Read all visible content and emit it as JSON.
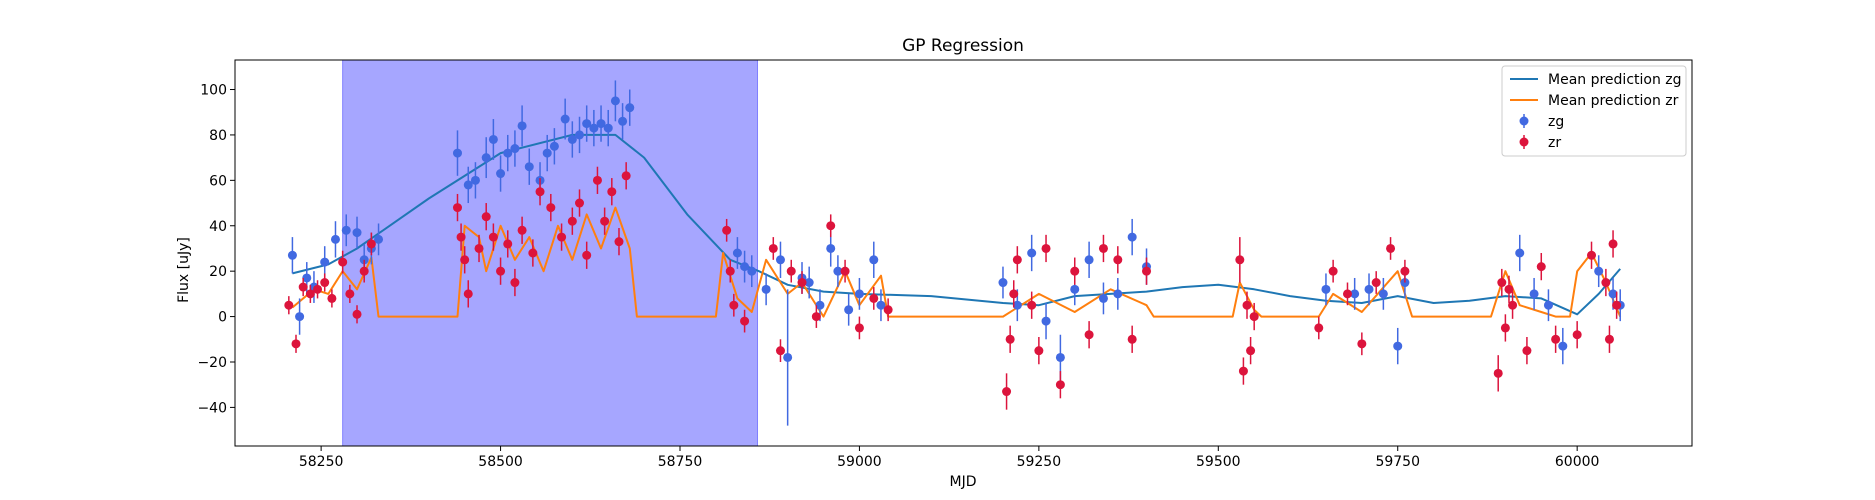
{
  "chart_data": {
    "type": "scatter",
    "title": "GP Regression",
    "xlabel": "MJD",
    "ylabel": "Flux [uJy]",
    "xlim": [
      58130,
      60160
    ],
    "ylim": [
      -57,
      113
    ],
    "xticks": [
      58250,
      58500,
      58750,
      59000,
      59250,
      59500,
      59750,
      60000
    ],
    "yticks": [
      -40,
      -20,
      0,
      20,
      40,
      60,
      80,
      100
    ],
    "grid": false,
    "legend_position": "top-right",
    "highlight_region": {
      "x0": 58280,
      "x1": 58858,
      "color": "#a6a6ff"
    },
    "colors": {
      "zg": "#4169e1",
      "zr": "#dc143c",
      "mean_zg": "#1f77b4",
      "mean_zr": "#ff7f0e"
    },
    "series": [
      {
        "name": "Mean prediction zg",
        "kind": "line",
        "color": "#1f77b4",
        "x": [
          58210,
          58260,
          58300,
          58400,
          58500,
          58600,
          58660,
          58700,
          58760,
          58820,
          58860,
          58900,
          58950,
          59000,
          59100,
          59200,
          59250,
          59300,
          59400,
          59450,
          59500,
          59550,
          59600,
          59650,
          59700,
          59750,
          59800,
          59850,
          59900,
          59950,
          60000,
          60030,
          60060
        ],
        "y": [
          19,
          23,
          30,
          52,
          72,
          80,
          80,
          70,
          45,
          25,
          20,
          14,
          11,
          10,
          9,
          6,
          5,
          9,
          11,
          13,
          14,
          12,
          9,
          7,
          6,
          9,
          6,
          7,
          9,
          8,
          1,
          10,
          21
        ]
      },
      {
        "name": "Mean prediction zr",
        "kind": "line",
        "color": "#ff7f0e",
        "x": [
          58210,
          58240,
          58260,
          58280,
          58300,
          58320,
          58330,
          58440,
          58450,
          58470,
          58480,
          58500,
          58520,
          58540,
          58560,
          58580,
          58600,
          58620,
          58640,
          58660,
          58680,
          58690,
          58800,
          58810,
          58830,
          58850,
          58870,
          58900,
          58920,
          58950,
          58980,
          59000,
          59030,
          59040,
          59200,
          59250,
          59300,
          59350,
          59400,
          59410,
          59520,
          59530,
          59550,
          59560,
          59640,
          59660,
          59700,
          59750,
          59770,
          59880,
          59900,
          59920,
          59950,
          59970,
          59990,
          60000,
          60020,
          60040,
          60060
        ],
        "y": [
          4,
          12,
          10,
          20,
          12,
          26,
          0,
          0,
          40,
          35,
          20,
          40,
          25,
          35,
          20,
          40,
          25,
          45,
          30,
          48,
          30,
          0,
          0,
          28,
          8,
          2,
          25,
          10,
          15,
          0,
          20,
          5,
          18,
          0,
          0,
          10,
          2,
          12,
          5,
          0,
          0,
          15,
          3,
          0,
          0,
          10,
          2,
          20,
          0,
          0,
          20,
          5,
          2,
          0,
          0,
          20,
          28,
          15,
          0
        ]
      },
      {
        "name": "zg",
        "kind": "errorbar",
        "color": "#4169e1",
        "x": [
          58210,
          58220,
          58230,
          58240,
          58255,
          58270,
          58285,
          58300,
          58310,
          58320,
          58330,
          58440,
          58455,
          58465,
          58480,
          58490,
          58500,
          58510,
          58520,
          58530,
          58540,
          58555,
          58565,
          58575,
          58590,
          58600,
          58610,
          58620,
          58630,
          58640,
          58650,
          58660,
          58670,
          58680,
          58830,
          58840,
          58850,
          58870,
          58890,
          58900,
          58920,
          58930,
          58945,
          58960,
          58970,
          58985,
          59000,
          59020,
          59030,
          59200,
          59220,
          59240,
          59260,
          59280,
          59300,
          59320,
          59340,
          59360,
          59380,
          59400,
          59650,
          59690,
          59710,
          59730,
          59750,
          59760,
          59920,
          59940,
          59960,
          59980,
          60030,
          60050,
          60060
        ],
        "y": [
          27,
          0,
          17,
          13,
          24,
          34,
          38,
          37,
          25,
          30,
          34,
          72,
          58,
          60,
          70,
          78,
          63,
          72,
          74,
          84,
          66,
          60,
          72,
          75,
          87,
          78,
          80,
          85,
          83,
          85,
          83,
          95,
          86,
          92,
          28,
          22,
          20,
          12,
          25,
          -18,
          17,
          15,
          5,
          30,
          20,
          3,
          10,
          25,
          5,
          15,
          5,
          28,
          -2,
          -18,
          12,
          25,
          8,
          10,
          35,
          22,
          12,
          10,
          12,
          10,
          -13,
          15,
          28,
          10,
          5,
          -13,
          20,
          10,
          5
        ],
        "yerr": [
          8,
          8,
          7,
          7,
          7,
          8,
          7,
          7,
          7,
          7,
          7,
          10,
          8,
          8,
          9,
          9,
          8,
          8,
          8,
          9,
          8,
          8,
          8,
          8,
          9,
          8,
          8,
          8,
          8,
          8,
          8,
          9,
          8,
          8,
          7,
          7,
          7,
          7,
          8,
          30,
          7,
          7,
          7,
          8,
          7,
          7,
          7,
          8,
          7,
          7,
          7,
          8,
          8,
          10,
          7,
          8,
          7,
          7,
          8,
          8,
          7,
          7,
          7,
          7,
          8,
          7,
          8,
          7,
          7,
          8,
          7,
          7,
          7
        ]
      },
      {
        "name": "zr",
        "kind": "errorbar",
        "color": "#dc143c",
        "x": [
          58205,
          58215,
          58225,
          58235,
          58245,
          58255,
          58265,
          58280,
          58290,
          58300,
          58310,
          58320,
          58440,
          58445,
          58450,
          58455,
          58470,
          58480,
          58490,
          58500,
          58510,
          58520,
          58530,
          58545,
          58555,
          58570,
          58585,
          58600,
          58610,
          58620,
          58635,
          58645,
          58655,
          58665,
          58675,
          58815,
          58820,
          58825,
          58840,
          58880,
          58890,
          58905,
          58920,
          58940,
          58960,
          58980,
          59000,
          59020,
          59040,
          59205,
          59210,
          59215,
          59220,
          59240,
          59250,
          59260,
          59280,
          59300,
          59320,
          59340,
          59360,
          59380,
          59400,
          59530,
          59535,
          59540,
          59545,
          59550,
          59640,
          59660,
          59680,
          59700,
          59720,
          59740,
          59760,
          59890,
          59895,
          59900,
          59905,
          59910,
          59930,
          59950,
          59970,
          60000,
          60020,
          60040,
          60045,
          60050,
          60055
        ],
        "y": [
          5,
          -12,
          13,
          10,
          12,
          15,
          8,
          24,
          10,
          1,
          20,
          32,
          48,
          35,
          25,
          10,
          30,
          44,
          35,
          20,
          32,
          15,
          38,
          28,
          55,
          48,
          35,
          42,
          50,
          27,
          60,
          42,
          55,
          33,
          62,
          38,
          20,
          5,
          -2,
          30,
          -15,
          20,
          15,
          0,
          40,
          20,
          -5,
          8,
          3,
          -33,
          -10,
          10,
          25,
          5,
          -15,
          30,
          -30,
          20,
          -8,
          30,
          25,
          -10,
          20,
          25,
          -24,
          5,
          -15,
          0,
          -5,
          20,
          10,
          -12,
          15,
          30,
          20,
          -25,
          15,
          -5,
          12,
          5,
          -15,
          22,
          -10,
          -8,
          27,
          15,
          -10,
          32,
          5
        ],
        "yerr": [
          4,
          4,
          4,
          4,
          4,
          4,
          4,
          5,
          4,
          4,
          5,
          5,
          6,
          6,
          6,
          6,
          6,
          6,
          6,
          6,
          6,
          6,
          6,
          6,
          6,
          6,
          6,
          6,
          6,
          6,
          6,
          6,
          6,
          6,
          6,
          5,
          5,
          5,
          5,
          5,
          5,
          5,
          5,
          5,
          5,
          5,
          5,
          5,
          5,
          8,
          6,
          6,
          6,
          6,
          6,
          6,
          6,
          6,
          6,
          6,
          6,
          6,
          6,
          10,
          6,
          6,
          6,
          6,
          5,
          5,
          5,
          5,
          5,
          5,
          5,
          8,
          6,
          6,
          6,
          6,
          6,
          6,
          6,
          6,
          6,
          6,
          6,
          6,
          6
        ]
      }
    ]
  }
}
